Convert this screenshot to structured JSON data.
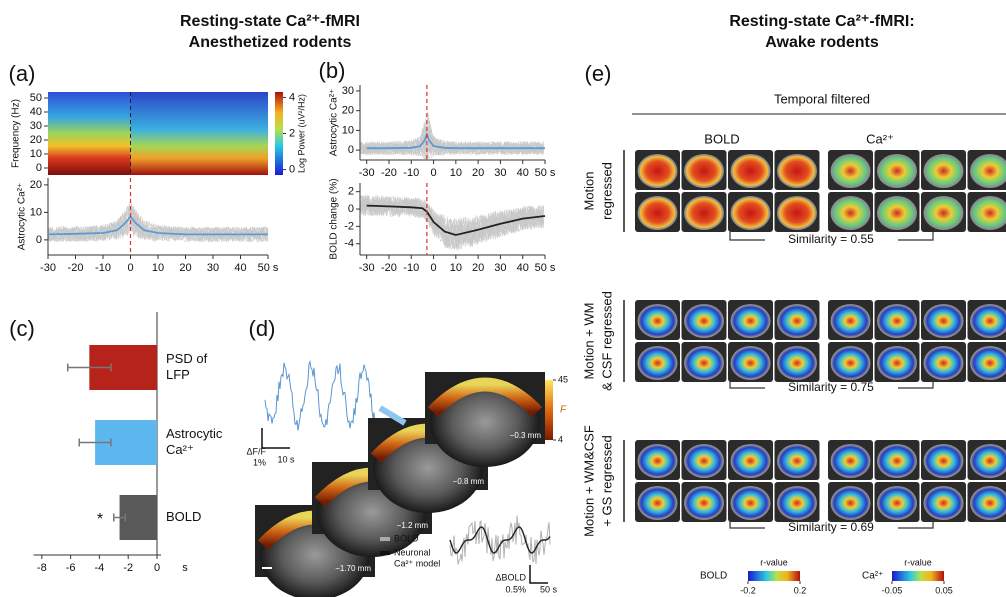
{
  "headers": {
    "left": {
      "title": "Resting-state Ca²⁺-fMRI",
      "subtitle": "Anesthetized rodents"
    },
    "right": {
      "title": "Resting-state Ca²⁺-fMRI:",
      "subtitle": "Awake rodents"
    }
  },
  "panel_a": {
    "label": "(a)",
    "spectrogram": {
      "type": "heatmap",
      "ylabel": "Frequency (Hz)",
      "xlim": [
        -30,
        50
      ],
      "ylim": [
        -5,
        54.3
      ],
      "yticks": [
        0,
        10,
        20,
        30,
        40,
        50
      ],
      "event_x": 0,
      "colorbar": {
        "label": "Log Power (uV²/Hz)",
        "lim": [
          -0.3,
          4.3
        ],
        "ticks": [
          0,
          2,
          4
        ]
      }
    },
    "trace": {
      "type": "line",
      "ylabel": "Astrocytic Ca²⁺",
      "x": [
        -30,
        -20,
        -10,
        -5,
        -2,
        0,
        2,
        5,
        10,
        20,
        30,
        40,
        50
      ],
      "series": [
        {
          "color": "#5b9bd5",
          "values": [
            2,
            2.2,
            2.5,
            3.5,
            6,
            8.5,
            6,
            3.5,
            2.5,
            2,
            2,
            2,
            2
          ]
        }
      ],
      "xlim": [
        -30,
        50
      ],
      "ylim": [
        -5.5,
        22.5
      ],
      "xticks": [
        -30,
        -20,
        -10,
        0,
        10,
        20,
        30,
        40,
        {
          "value": 50,
          "label": "50 s"
        }
      ],
      "yticks": [
        0,
        10,
        20
      ],
      "event_x": 0
    }
  },
  "panel_b": {
    "label": "(b)",
    "calcium": {
      "type": "line",
      "ylabel": "Astrocytic Ca²⁺",
      "x": [
        -30,
        -20,
        -10,
        -6,
        -4,
        -3,
        -2,
        0,
        5,
        10,
        20,
        30,
        40,
        50
      ],
      "series": [
        {
          "color": "#5b9bd5",
          "values": [
            1,
            1,
            1.2,
            2,
            5,
            8,
            5,
            2,
            1.2,
            1,
            1,
            1,
            1,
            1
          ]
        }
      ],
      "xlim": [
        -33,
        50
      ],
      "ylim": [
        -5,
        33
      ],
      "xticks": [
        -30,
        -20,
        -10,
        0,
        10,
        20,
        30,
        40,
        {
          "value": 50,
          "label": "50 s"
        }
      ],
      "yticks": [
        0,
        10,
        20,
        30
      ],
      "event_x": -3
    },
    "bold": {
      "type": "line",
      "ylabel": "BOLD change (%)",
      "x": [
        -30,
        -20,
        -10,
        -5,
        -3,
        0,
        5,
        10,
        20,
        30,
        40,
        50
      ],
      "series": [
        {
          "color": "#222222",
          "values": [
            0.4,
            0.3,
            0.2,
            0.1,
            -0.3,
            -1.5,
            -2.6,
            -3,
            -2.4,
            -1.7,
            -1.1,
            -0.8
          ]
        }
      ],
      "xlim": [
        -33,
        50
      ],
      "ylim": [
        -5.3,
        3
      ],
      "xticks": [
        -30,
        -20,
        -10,
        0,
        10,
        20,
        30,
        40,
        {
          "value": 50,
          "label": "50 s"
        }
      ],
      "yticks": [
        2,
        0,
        -2,
        -4
      ],
      "event_x": -3
    }
  },
  "panel_c": {
    "label": "(c)",
    "chart": {
      "type": "bar",
      "orientation": "horizontal",
      "categories": [
        [
          "PSD of",
          "LFP"
        ],
        [
          "Astrocytic",
          "Ca²⁺"
        ],
        [
          "BOLD"
        ]
      ],
      "values": [
        -4.7,
        -4.3,
        -2.6
      ],
      "errors": [
        1.5,
        1.1,
        0.4
      ],
      "colors": [
        "#b5231a",
        "#5cb8ee",
        "#595959"
      ],
      "xlim": [
        -8.3,
        0
      ],
      "xticks": [
        -8,
        -6,
        -4,
        -2,
        0
      ],
      "xlabel": "s",
      "annotation": "*"
    }
  },
  "panel_d": {
    "label": "(d)",
    "trace_scale": {
      "ylabel": "ΔF/F",
      "y": "1%",
      "x": "10 s"
    },
    "colorbar": {
      "lim": [
        4,
        45
      ],
      "ticks": [
        45,
        4
      ],
      "label": "F"
    },
    "slices": [
      "−0.3 mm",
      "−0.8 mm",
      "−1.2 mm",
      "−1.70 mm"
    ],
    "legend": [
      [
        "BOLD"
      ],
      [
        "Neuronal",
        "Ca²⁺ model"
      ]
    ],
    "inset_scale": {
      "ylabel": "ΔBOLD",
      "y": "0.5%",
      "x": "50 s"
    }
  },
  "panel_e": {
    "label": "(e)",
    "header": "Temporal filtered",
    "columns": [
      "BOLD",
      "Ca²⁺"
    ],
    "rows": [
      {
        "label": [
          "Motion",
          "regressed"
        ],
        "similarity": "Similarity = 0.55"
      },
      {
        "label": [
          "Motion + WM",
          "& CSF regressed"
        ],
        "similarity": "Similarity = 0.75"
      },
      {
        "label": [
          "Motion + WM&CSF",
          "+ GS regressed"
        ],
        "similarity": "Similarity = 0.69"
      }
    ],
    "colorbars": [
      {
        "name": "BOLD",
        "label": "r-value",
        "lim": [
          -0.2,
          0.2
        ],
        "ticks": [
          -0.2,
          0.2
        ]
      },
      {
        "name": "Ca²⁺",
        "label": "r-value",
        "lim": [
          -0.05,
          0.05
        ],
        "ticks": [
          -0.05,
          0.05
        ]
      }
    ]
  }
}
